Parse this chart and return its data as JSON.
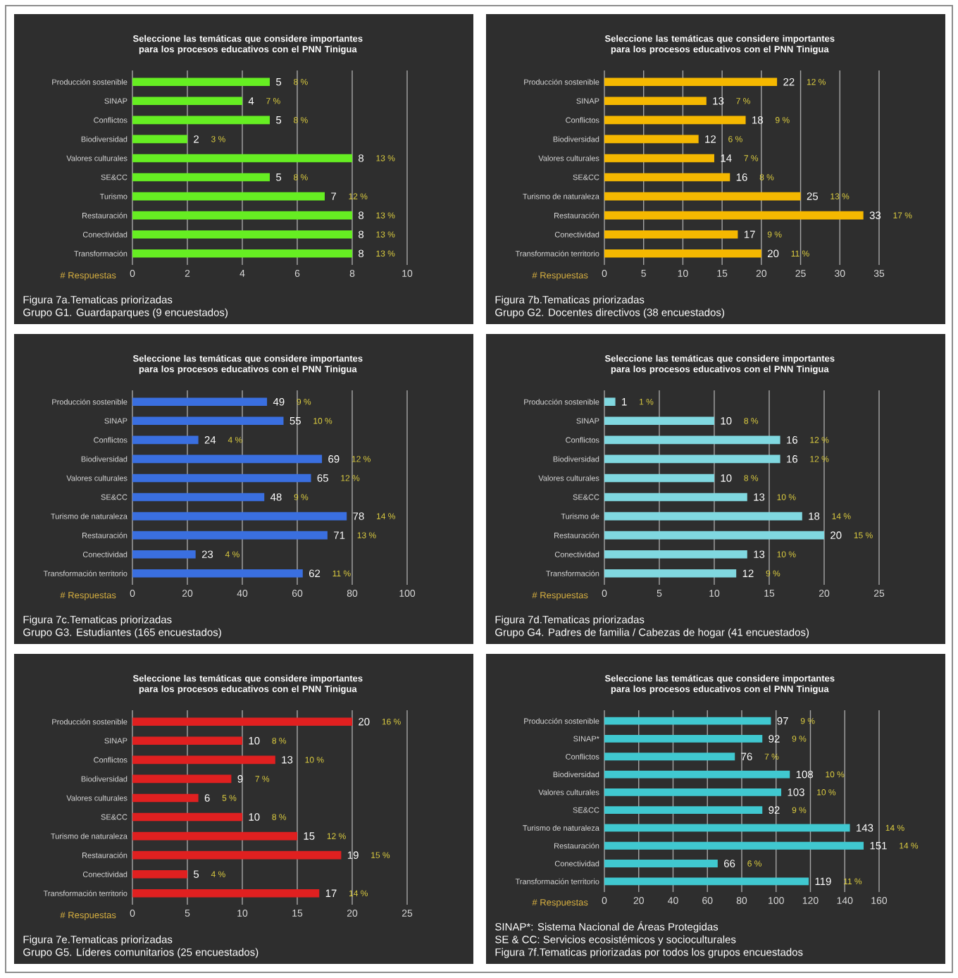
{
  "chart_data": [
    {
      "type": "bar",
      "orientation": "horizontal",
      "title": "Seleccione las temáticas que considere importantes para los procesos educativos con el PNN Tinigua",
      "xlabel": "# Respuestas",
      "color": "#66ee22",
      "grid": "x",
      "data_labels": true,
      "xlim": [
        0,
        10
      ],
      "xticks": [
        0,
        2,
        4,
        6,
        8,
        10
      ],
      "categories": [
        "Producción sostenible",
        "SINAP",
        "Conflictos",
        "Biodiversidad",
        "Valores culturales",
        "SE&CC",
        "Turismo",
        "Restauración",
        "Conectividad",
        "Transformación"
      ],
      "values": [
        5,
        4,
        5,
        2,
        8,
        5,
        7,
        8,
        8,
        8
      ],
      "annotations": [
        "8 %",
        "7 %",
        "8 %",
        "3 %",
        "13 %",
        "8 %",
        "12 %",
        "13 %",
        "13 %",
        "13 %",
        "Figura 7a.Tematicas priorizadas",
        "Grupo G1. Guardaparques (9 encuestados)"
      ]
    },
    {
      "type": "bar",
      "orientation": "horizontal",
      "title": "Seleccione las temáticas que considere importantes para los procesos educativos con el PNN Tinigua",
      "xlabel": "# Respuestas",
      "color": "#f5b800",
      "grid": "x",
      "data_labels": true,
      "xlim": [
        0,
        35
      ],
      "xticks": [
        0,
        5,
        10,
        15,
        20,
        25,
        30,
        35
      ],
      "categories": [
        "Producción sostenible",
        "SINAP",
        "Conflictos",
        "Biodiversidad",
        "Valores culturales",
        "SE&CC",
        "Turismo de naturaleza",
        "Restauración",
        "Conectividad",
        "Transformación territorio"
      ],
      "values": [
        22,
        13,
        18,
        12,
        14,
        16,
        25,
        33,
        17,
        20
      ],
      "annotations": [
        "12 %",
        "7 %",
        "9 %",
        "6 %",
        "7 %",
        "8 %",
        "13 %",
        "17 %",
        "9 %",
        "11 %",
        "Figura 7b.Tematicas priorizadas",
        "Grupo G2. Docentes directivos (38 encuestados)"
      ]
    },
    {
      "type": "bar",
      "orientation": "horizontal",
      "title": "Seleccione las temáticas que considere importantes para los procesos educativos con el PNN Tinigua",
      "xlabel": "# Respuestas",
      "color": "#3a6fe0",
      "grid": "x",
      "data_labels": true,
      "xlim": [
        0,
        100
      ],
      "xticks": [
        0,
        20,
        40,
        60,
        80,
        100
      ],
      "categories": [
        "Producción sostenible",
        "SINAP",
        "Conflictos",
        "Biodiversidad",
        "Valores culturales",
        "SE&CC",
        "Turismo de naturaleza",
        "Restauración",
        "Conectividad",
        "Transformación territorio"
      ],
      "values": [
        49,
        55,
        24,
        69,
        65,
        48,
        78,
        71,
        23,
        62
      ],
      "annotations": [
        "9 %",
        "10 %",
        "4 %",
        "12 %",
        "12 %",
        "9 %",
        "14 %",
        "13 %",
        "4 %",
        "11 %",
        "Figura 7c.Tematicas priorizadas",
        "Grupo G3. Estudiantes (165 encuestados)"
      ]
    },
    {
      "type": "bar",
      "orientation": "horizontal",
      "title": "Seleccione las temáticas que considere importantes para los procesos educativos con el PNN Tinigua",
      "xlabel": "# Respuestas",
      "color": "#80d8e0",
      "grid": "x",
      "data_labels": true,
      "xlim": [
        0,
        25
      ],
      "xticks": [
        0,
        5,
        10,
        15,
        20,
        25
      ],
      "categories": [
        "Producción sostenible",
        "SINAP",
        "Conflictos",
        "Biodiversidad",
        "Valores culturales",
        "SE&CC",
        "Turismo de",
        "Restauración",
        "Conectividad",
        "Transformación"
      ],
      "values": [
        1,
        10,
        16,
        16,
        10,
        13,
        18,
        20,
        13,
        12
      ],
      "annotations": [
        "1 %",
        "8 %",
        "12 %",
        "12 %",
        "8 %",
        "10 %",
        "14 %",
        "15 %",
        "10 %",
        "9 %",
        "Figura 7d.Tematicas priorizadas",
        "Grupo G4. Padres de familia / Cabezas de hogar (41 encuestados)"
      ]
    },
    {
      "type": "bar",
      "orientation": "horizontal",
      "title": "Seleccione las temáticas que considere importantes para los procesos educativos con el PNN Tinigua",
      "xlabel": "# Respuestas",
      "color": "#e02020",
      "grid": "x",
      "data_labels": true,
      "xlim": [
        0,
        25
      ],
      "xticks": [
        0,
        5,
        10,
        15,
        20,
        25
      ],
      "categories": [
        "Producción sostenible",
        "SINAP",
        "Conflictos",
        "Biodiversidad",
        "Valores culturales",
        "SE&CC",
        "Turismo de naturaleza",
        "Restauración",
        "Conectividad",
        "Transformación territorio"
      ],
      "values": [
        20,
        10,
        13,
        9,
        6,
        10,
        15,
        19,
        5,
        17
      ],
      "annotations": [
        "16 %",
        "8 %",
        "10 %",
        "7 %",
        "5 %",
        "8 %",
        "12 %",
        "15 %",
        "4 %",
        "14 %",
        "Figura 7e.Tematicas priorizadas",
        "Grupo G5. Líderes comunitarios (25 encuestados)"
      ]
    },
    {
      "type": "bar",
      "orientation": "horizontal",
      "title": "Seleccione las temáticas que considere importantes para los procesos educativos con el PNN Tinigua",
      "xlabel": "# Respuestas",
      "color": "#40c8d0",
      "grid": "x",
      "data_labels": true,
      "xlim": [
        0,
        160
      ],
      "xticks": [
        0,
        20,
        40,
        60,
        80,
        100,
        120,
        140,
        160
      ],
      "categories": [
        "Producción sostenible",
        "SINAP*",
        "Conflictos",
        "Biodiversidad",
        "Valores culturales",
        "SE&CC",
        "Turismo de naturaleza",
        "Restauración",
        "Conectividad",
        "Transformación territorio"
      ],
      "values": [
        97,
        92,
        76,
        108,
        103,
        92,
        143,
        151,
        66,
        119
      ],
      "annotations": [
        "9 %",
        "9 %",
        "7 %",
        "10 %",
        "10 %",
        "9 %",
        "14 %",
        "14 %",
        "6 %",
        "11 %",
        "SINAP*: Sistema Nacional de Áreas Protegidas",
        "SE & CC: Servicios ecosistémicos y socioculturales",
        "Figura 7f.Tematicas priorizadas por todos los grupos encuestados"
      ]
    }
  ]
}
